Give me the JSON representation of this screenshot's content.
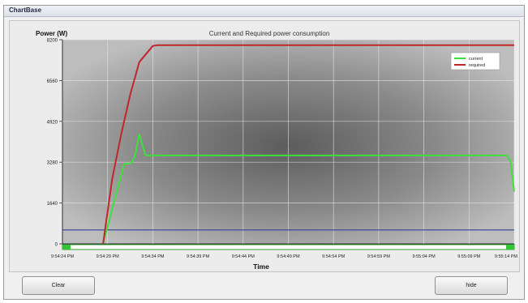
{
  "window": {
    "title": "ChartBase"
  },
  "buttons": {
    "clear": "Clear",
    "hide": "hide"
  },
  "chart_data": {
    "type": "line",
    "title": "Current and Required power consumption",
    "ylabel": "Power (W)",
    "xlabel": "Time",
    "ylim": [
      0,
      8200
    ],
    "yticks": [
      0,
      1640,
      3280,
      4920,
      6560,
      8200
    ],
    "xticks": [
      "9:54:24 PM",
      "9:54:29 PM",
      "9:54:34 PM",
      "9:54:39 PM",
      "9:54:44 PM",
      "9:54:49 PM",
      "9:54:54 PM",
      "9:54:59 PM",
      "9:55:04 PM",
      "9:55:09 PM",
      "9:55:14 PM"
    ],
    "x_range_seconds": [
      0,
      50
    ],
    "grid": true,
    "legend_position": "top-right",
    "reference_line": {
      "y": 560,
      "color": "#3a3f9a"
    },
    "series": [
      {
        "name": "current",
        "color": "#3ee03e",
        "points": [
          [
            4.5,
            0
          ],
          [
            6.8,
            3200
          ],
          [
            7.6,
            3250
          ],
          [
            8.0,
            3500
          ],
          [
            8.5,
            4400
          ],
          [
            9.2,
            3550
          ],
          [
            10,
            3550
          ],
          [
            20,
            3550
          ],
          [
            30,
            3550
          ],
          [
            40,
            3550
          ],
          [
            49.2,
            3550
          ],
          [
            49.6,
            3300
          ],
          [
            50,
            2100
          ]
        ]
      },
      {
        "name": "required",
        "color": "#c0262a",
        "points": [
          [
            4.5,
            0
          ],
          [
            5.5,
            2600
          ],
          [
            6.5,
            4400
          ],
          [
            7.5,
            6000
          ],
          [
            8.5,
            7300
          ],
          [
            10,
            7950
          ],
          [
            10.5,
            7980
          ],
          [
            20,
            7980
          ],
          [
            30,
            7980
          ],
          [
            40,
            7980
          ],
          [
            50,
            7980
          ]
        ]
      }
    ]
  }
}
